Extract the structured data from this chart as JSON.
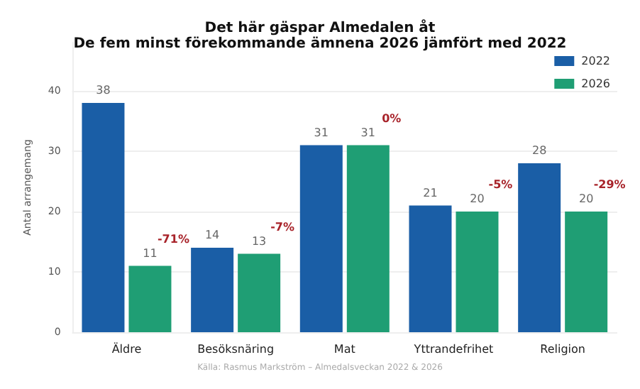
{
  "chart_data": {
    "type": "bar",
    "title": "Det här gäspar Almedalen åt",
    "subtitle": "De fem minst förekommande ämnena 2026 jämfört med 2022",
    "ylabel": "Antal arrangemang",
    "categories": [
      "Äldre",
      "Besöksnäring",
      "Mat",
      "Yttrandefrihet",
      "Religion"
    ],
    "series": [
      {
        "name": "2022",
        "color": "#1a5ea6",
        "values": [
          38,
          14,
          31,
          21,
          28
        ]
      },
      {
        "name": "2026",
        "color": "#1f9e74",
        "values": [
          11,
          13,
          31,
          20,
          20
        ]
      }
    ],
    "ylim": [
      0,
      48
    ],
    "yticks": [
      0,
      10,
      20,
      30,
      40
    ],
    "grid": "y",
    "legend": "top right",
    "data_labels": true,
    "annotations": [
      "-71%",
      "-7%",
      "0%",
      "-5%",
      "-29%",
      "Källa: Rasmus Markström – Almedalsveckan 2022 & 2026"
    ]
  }
}
